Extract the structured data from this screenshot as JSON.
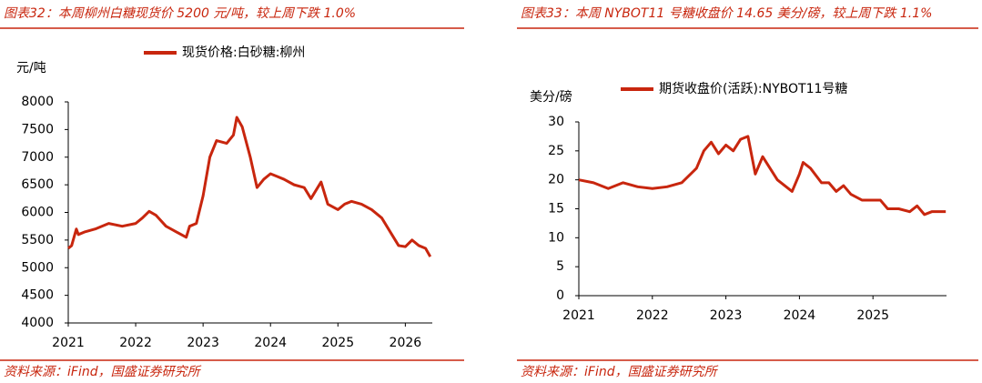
{
  "chart_data": [
    {
      "type": "line",
      "title": "图表32：本周柳州白糖现货价 5200 元/吨，较上周下跌 1.0%",
      "source": "资料来源：iFind，国盛证券研究所",
      "y_label": "元/吨",
      "series": [
        {
          "name": "现货价格:白砂糖:柳州",
          "color": "#c8260e",
          "x": [
            2021.0,
            2021.05,
            2021.12,
            2021.15,
            2021.25,
            2021.4,
            2021.6,
            2021.8,
            2022.0,
            2022.1,
            2022.2,
            2022.3,
            2022.45,
            2022.6,
            2022.75,
            2022.8,
            2022.9,
            2023.0,
            2023.1,
            2023.2,
            2023.35,
            2023.45,
            2023.5,
            2023.58,
            2023.7,
            2023.8,
            2023.9,
            2024.0,
            2024.1,
            2024.2,
            2024.35,
            2024.5,
            2024.6,
            2024.75,
            2024.85,
            2025.0,
            2025.1,
            2025.2,
            2025.35,
            2025.5,
            2025.65,
            2025.8,
            2025.9,
            2026.0,
            2026.1,
            2026.2,
            2026.3,
            2026.37
          ],
          "values": [
            5350,
            5400,
            5700,
            5600,
            5650,
            5700,
            5800,
            5750,
            5800,
            5900,
            6020,
            5950,
            5750,
            5650,
            5550,
            5750,
            5800,
            6300,
            7000,
            7300,
            7250,
            7400,
            7720,
            7550,
            7000,
            6450,
            6600,
            6700,
            6650,
            6600,
            6500,
            6450,
            6250,
            6550,
            6150,
            6050,
            6150,
            6200,
            6150,
            6050,
            5900,
            5600,
            5400,
            5380,
            5500,
            5400,
            5350,
            5200
          ]
        }
      ],
      "xlim": [
        2021,
        2026.4
      ],
      "xticks": [
        2021,
        2022,
        2023,
        2024,
        2025,
        2026
      ],
      "ylim": [
        4000,
        8000
      ],
      "yticks": [
        4000,
        4500,
        5000,
        5500,
        6000,
        6500,
        7000,
        7500,
        8000
      ]
    },
    {
      "type": "line",
      "title": "图表33：本周 NYBOT11 号糖收盘价 14.65 美分/磅，较上周下跌 1.1%",
      "source": "资料来源：iFind，国盛证券研究所",
      "y_label": "美分/磅",
      "series": [
        {
          "name": "期货收盘价(活跃):NYBOT11号糖",
          "color": "#c8260e",
          "x": [
            2021.0,
            2021.2,
            2021.4,
            2021.6,
            2021.8,
            2022.0,
            2022.2,
            2022.4,
            2022.6,
            2022.7,
            2022.8,
            2022.9,
            2023.0,
            2023.1,
            2023.2,
            2023.3,
            2023.4,
            2023.5,
            2023.6,
            2023.7,
            2023.8,
            2023.9,
            2024.0,
            2024.05,
            2024.15,
            2024.3,
            2024.4,
            2024.5,
            2024.6,
            2024.7,
            2024.85,
            2025.0,
            2025.1,
            2025.2,
            2025.35,
            2025.5,
            2025.6,
            2025.7,
            2025.8,
            2025.9,
            2025.99
          ],
          "values": [
            20,
            19.5,
            18.5,
            19.5,
            18.8,
            18.5,
            18.8,
            19.5,
            22,
            25,
            26.5,
            24.5,
            26,
            25,
            27,
            27.5,
            21,
            24,
            22,
            20,
            19,
            18,
            21,
            23,
            22,
            19.5,
            19.5,
            18,
            19,
            17.5,
            16.5,
            16.5,
            16.5,
            15,
            15,
            14.5,
            15.5,
            14,
            14.5,
            14.5,
            14.5
          ]
        }
      ],
      "xlim": [
        2021,
        2026
      ],
      "xticks": [
        2021,
        2022,
        2023,
        2024,
        2025
      ],
      "ylim": [
        0,
        30
      ],
      "yticks": [
        0,
        5,
        10,
        15,
        20,
        25,
        30
      ]
    }
  ]
}
